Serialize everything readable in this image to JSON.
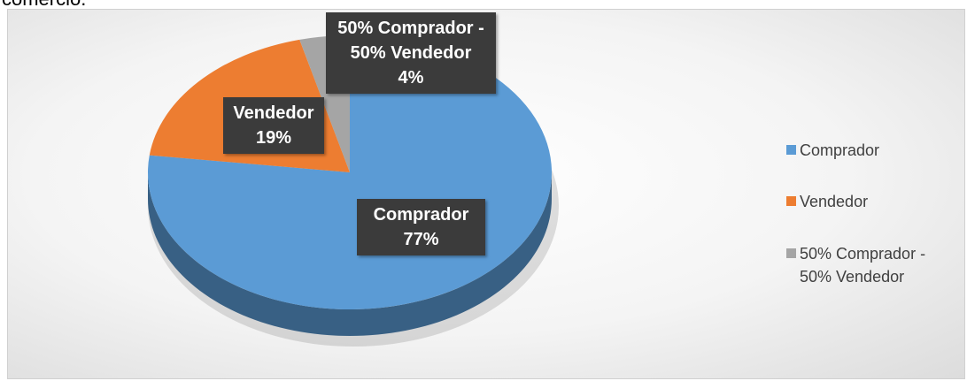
{
  "caption": "comercio.",
  "chart_data": {
    "type": "pie",
    "categories": [
      "Comprador",
      "Vendedor",
      "50% Comprador - 50% Vendedor"
    ],
    "values": [
      77,
      19,
      4
    ],
    "value_labels": [
      "77%",
      "19%",
      "4%"
    ],
    "colors": [
      "#5b9bd5",
      "#ed7d31",
      "#a5a5a5"
    ],
    "legend": "right"
  }
}
